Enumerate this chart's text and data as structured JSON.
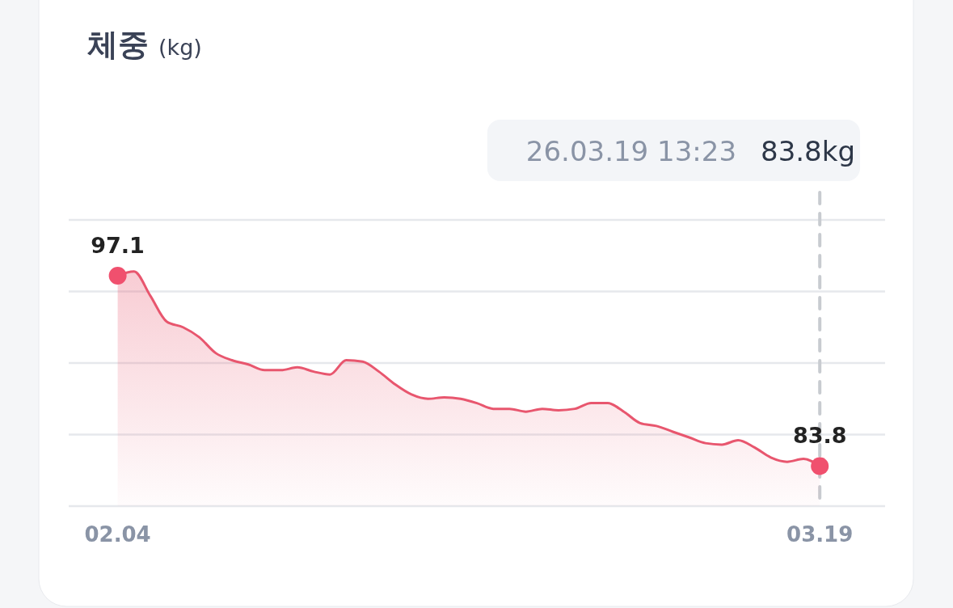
{
  "chart_data": {
    "type": "area",
    "title": "체중",
    "subtitle": "(kg)",
    "x": [
      "--02-04",
      "--02-05",
      "--02-06",
      "--02-07",
      "--02-08",
      "--02-09",
      "--02-10",
      "--02-11",
      "--02-12",
      "--02-13",
      "--02-14",
      "--02-15",
      "--02-16",
      "--02-17",
      "--02-18",
      "--02-19",
      "--02-20",
      "--02-21",
      "--02-22",
      "--02-23",
      "--02-24",
      "--02-25",
      "--02-26",
      "--02-27",
      "--02-28",
      "--03-01",
      "--03-02",
      "--03-03",
      "--03-04",
      "--03-05",
      "--03-06",
      "--03-07",
      "--03-08",
      "--03-09",
      "--03-10",
      "--03-11",
      "--03-12",
      "--03-13",
      "--03-14",
      "--03-15",
      "--03-16",
      "--03-17",
      "--03-18",
      "--03-19"
    ],
    "series": [
      {
        "color": "#e8566e",
        "values": [
          97.1,
          97.4,
          95.7,
          93.9,
          93.5,
          92.8,
          91.7,
          91.2,
          90.9,
          90.5,
          90.5,
          90.7,
          90.4,
          90.2,
          91.2,
          91.1,
          90.4,
          89.5,
          88.8,
          88.5,
          88.6,
          88.5,
          88.2,
          87.8,
          87.8,
          87.6,
          87.8,
          87.7,
          87.8,
          88.2,
          88.2,
          87.6,
          86.8,
          86.6,
          86.2,
          85.8,
          85.4,
          85.3,
          85.6,
          85.1,
          84.4,
          84.1,
          84.3,
          83.8
        ]
      },
      {
        "type": "scatter",
        "color": "#f0506e",
        "x": [
          "--02-04",
          "--03-19"
        ],
        "values": [
          97.1,
          83.8
        ],
        "value_labels": [
          "97.1",
          "83.8"
        ]
      }
    ],
    "xlim": [
      "--02-01",
      "--03-23"
    ],
    "xticks": [
      {
        "value": "--02-04",
        "label": "02.04"
      },
      {
        "value": "--03-19",
        "label": "03.19"
      }
    ],
    "ylim": [
      81,
      101
    ],
    "yticks": [
      {
        "value": 81,
        "label": null
      },
      {
        "value": 86,
        "label": null
      },
      {
        "value": 91,
        "label": null
      },
      {
        "value": 96,
        "label": null
      },
      {
        "value": 101,
        "label": null
      }
    ],
    "grid": "y",
    "tick_labels": "x",
    "ref_lines": [
      {
        "axis": "x",
        "value": "--03-19",
        "color": "#c8cbd0",
        "line_style": "dashed"
      }
    ],
    "annotations": [
      "26.03.19 13:23",
      "83.8kg"
    ]
  }
}
